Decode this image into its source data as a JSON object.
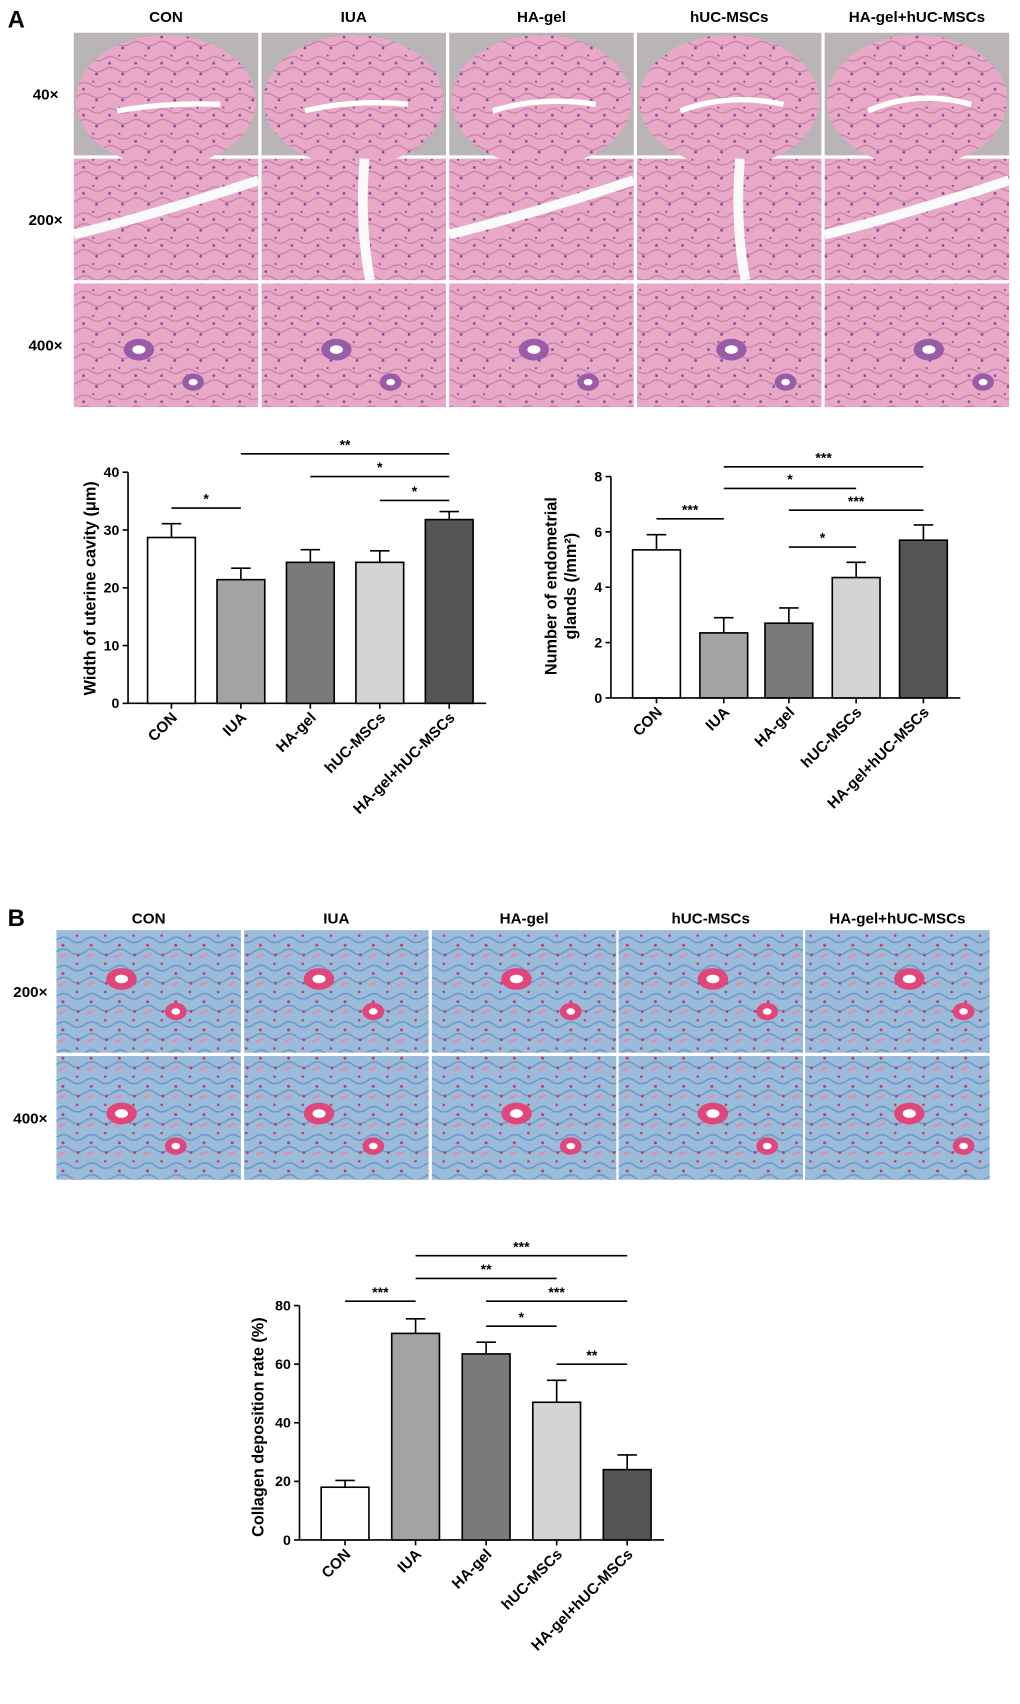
{
  "panels": [
    {
      "label": "A",
      "columns": [
        "CON",
        "IUA",
        "HA-gel",
        "hUC-MSCs",
        "HA-gel+hUC-MSCs"
      ],
      "rows": [
        "40×",
        "200×",
        "400×"
      ]
    },
    {
      "label": "B",
      "columns": [
        "CON",
        "IUA",
        "HA-gel",
        "hUC-MSCs",
        "HA-gel+hUC-MSCs"
      ],
      "rows": [
        "200×",
        "400×"
      ]
    }
  ],
  "chart_data": [
    {
      "type": "bar",
      "ylabel": [
        "Width of uterine cavity (μm)"
      ],
      "categories": [
        "CON",
        "IUA",
        "HA-gel",
        "hUC-MSCs",
        "HA-gel+hUC-MSCs"
      ],
      "values": [
        28.7,
        21.4,
        24.4,
        24.4,
        31.8
      ],
      "errors": [
        2.4,
        2.0,
        2.2,
        2.0,
        1.4
      ],
      "colors": [
        "#ffffff",
        "#a3a3a3",
        "#7a7a7a",
        "#d4d4d4",
        "#555555"
      ],
      "ylim": [
        0,
        40
      ],
      "yticks": [
        0,
        10,
        20,
        30,
        40
      ],
      "significance": [
        {
          "pair": [
            0,
            1
          ],
          "label": "*"
        },
        {
          "pair": [
            1,
            4
          ],
          "label": "**"
        },
        {
          "pair": [
            2,
            4
          ],
          "label": "*"
        },
        {
          "pair": [
            3,
            4
          ],
          "label": "*"
        }
      ]
    },
    {
      "type": "bar",
      "ylabel": [
        "Number of endometrial",
        "glands (/mm²)"
      ],
      "categories": [
        "CON",
        "IUA",
        "HA-gel",
        "hUC-MSCs",
        "HA-gel+hUC-MSCs"
      ],
      "values": [
        5.35,
        2.35,
        2.7,
        4.35,
        5.7
      ],
      "errors": [
        0.55,
        0.55,
        0.55,
        0.55,
        0.55
      ],
      "colors": [
        "#ffffff",
        "#a3a3a3",
        "#7a7a7a",
        "#d4d4d4",
        "#555555"
      ],
      "ylim": [
        0,
        8
      ],
      "yticks": [
        0,
        2,
        4,
        6,
        8
      ],
      "significance": [
        {
          "pair": [
            0,
            1
          ],
          "label": "***"
        },
        {
          "pair": [
            1,
            4
          ],
          "label": "***"
        },
        {
          "pair": [
            1,
            3
          ],
          "label": "*"
        },
        {
          "pair": [
            2,
            4
          ],
          "label": "***"
        },
        {
          "pair": [
            2,
            3
          ],
          "label": "*"
        }
      ]
    },
    {
      "type": "bar",
      "ylabel": [
        "Collagen deposition rate (%)"
      ],
      "categories": [
        "CON",
        "IUA",
        "HA-gel",
        "hUC-MSCs",
        "HA-gel+hUC-MSCs"
      ],
      "values": [
        18,
        70.5,
        63.5,
        47,
        24
      ],
      "errors": [
        2.3,
        5,
        4,
        7.5,
        5
      ],
      "colors": [
        "#ffffff",
        "#a3a3a3",
        "#7a7a7a",
        "#d4d4d4",
        "#555555"
      ],
      "ylim": [
        0,
        80
      ],
      "yticks": [
        0,
        20,
        40,
        60,
        80
      ],
      "significance": [
        {
          "pair": [
            0,
            1
          ],
          "label": "***"
        },
        {
          "pair": [
            1,
            4
          ],
          "label": "***"
        },
        {
          "pair": [
            1,
            3
          ],
          "label": "**"
        },
        {
          "pair": [
            2,
            4
          ],
          "label": "***"
        },
        {
          "pair": [
            2,
            3
          ],
          "label": "*"
        },
        {
          "pair": [
            3,
            4
          ],
          "label": "**"
        }
      ]
    }
  ]
}
